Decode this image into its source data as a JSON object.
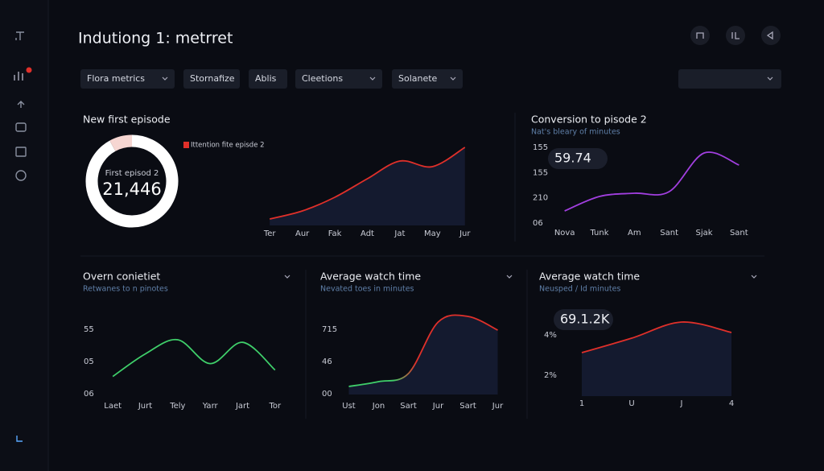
{
  "header": {
    "title": "Indutiong 1: metrret"
  },
  "filters": [
    "Flora metrics",
    "Stornafize",
    "Ablis",
    "Cleetions",
    "Solanete"
  ],
  "panels": [
    {
      "title": "New first episode",
      "donut": {
        "label": "First episod 2",
        "value": "21,446",
        "segments": [
          92,
          8
        ],
        "colors": [
          "#ffffff",
          "#f6d6d2"
        ]
      },
      "chart": {
        "type": "area",
        "legend": "Ittention fite episde 2",
        "color": "#e0302a",
        "categories": [
          "Ter",
          "Aur",
          "Fak",
          "Adt",
          "Jat",
          "May",
          "Jur"
        ],
        "values": [
          8,
          18,
          35,
          58,
          80,
          73,
          97
        ],
        "ylim": [
          0,
          100
        ]
      }
    },
    {
      "title": "Conversion to pisode 2",
      "subtitle": "Nat's bleary of minutes",
      "badge": "59.74",
      "chart": {
        "type": "line",
        "color": "#a23fe0",
        "y_labels": [
          "155",
          "155",
          "210",
          "06"
        ],
        "categories": [
          "Nova",
          "Tunk",
          "Am",
          "Sant",
          "Sjak",
          "Sant"
        ],
        "values": [
          18,
          36,
          40,
          42,
          90,
          75
        ],
        "ylim": [
          0,
          100
        ]
      }
    },
    {
      "title": "Overn conietiet",
      "subtitle": "Retwanes to n pinotes",
      "chart": {
        "type": "line",
        "color": "#3fcf6a",
        "y_labels": [
          "55",
          "05",
          "06"
        ],
        "categories": [
          "Laet",
          "Jurt",
          "Tely",
          "Yarr",
          "Jart",
          "Tor"
        ],
        "values": [
          28,
          63,
          85,
          48,
          81,
          38
        ],
        "ylim": [
          0,
          100
        ]
      }
    },
    {
      "title": "Average watch time",
      "subtitle": "Nevated toes in minutes",
      "chart": {
        "type": "area",
        "color": "#e0302a",
        "start_color": "#3fcf6a",
        "y_labels": [
          "715",
          "46",
          "00"
        ],
        "categories": [
          "Ust",
          "Jon",
          "Sart",
          "Jur",
          "Sart",
          "Jur"
        ],
        "values": [
          10,
          16,
          26,
          90,
          97,
          80
        ],
        "ylim": [
          0,
          100
        ]
      }
    },
    {
      "title": "Average watch time",
      "subtitle": "Neusped / Id minutes",
      "badge": "69.1.2K",
      "chart": {
        "type": "area",
        "color": "#e0302a",
        "y_labels": [
          "4%",
          "2%"
        ],
        "categories": [
          "1",
          "U",
          "J",
          "4"
        ],
        "values": [
          54,
          72,
          92,
          79
        ],
        "ylim": [
          0,
          100
        ]
      }
    }
  ]
}
